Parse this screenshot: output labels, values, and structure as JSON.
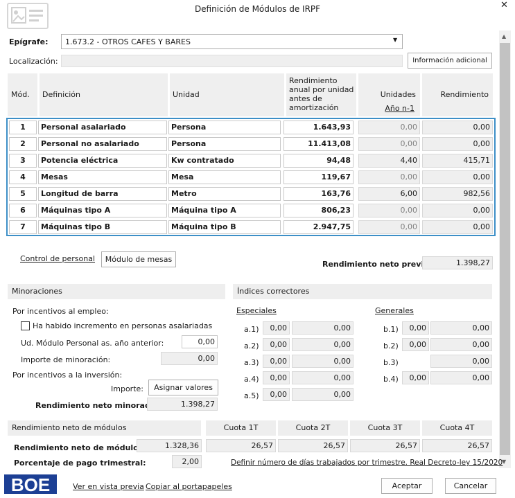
{
  "window": {
    "title": "Definición de Módulos de IRPF",
    "close": "✕"
  },
  "epigrafe": {
    "label": "Epígrafe:",
    "value": "1.673.2 - OTROS CAFES Y BARES"
  },
  "localizacion": {
    "label": "Localización:",
    "value": ""
  },
  "info_button": "Información adicional",
  "table": {
    "headers": {
      "mod": "Mód.",
      "definicion": "Definición",
      "unidad": "Unidad",
      "rendimiento_anual": "Rendimiento anual por unidad antes de amortización",
      "unidades": "Unidades",
      "anio": "Año n-1",
      "rendimiento": "Rendimiento"
    },
    "rows": [
      {
        "mod": "1",
        "def": "Personal asalariado",
        "unidad": "Persona",
        "rend": "1.643,93",
        "unid": "0,00",
        "total": "0,00"
      },
      {
        "mod": "2",
        "def": "Personal no asalariado",
        "unidad": "Persona",
        "rend": "11.413,08",
        "unid": "0,00",
        "total": "0,00"
      },
      {
        "mod": "3",
        "def": "Potencia eléctrica",
        "unidad": "Kw contratado",
        "rend": "94,48",
        "unid": "4,40",
        "total": "415,71"
      },
      {
        "mod": "4",
        "def": "Mesas",
        "unidad": "Mesa",
        "rend": "119,67",
        "unid": "0,00",
        "total": "0,00"
      },
      {
        "mod": "5",
        "def": "Longitud de barra",
        "unidad": "Metro",
        "rend": "163,76",
        "unid": "6,00",
        "total": "982,56"
      },
      {
        "mod": "6",
        "def": "Máquinas tipo A",
        "unidad": "Máquina tipo A",
        "rend": "806,23",
        "unid": "0,00",
        "total": "0,00"
      },
      {
        "mod": "7",
        "def": "Máquinas tipo B",
        "unidad": "Máquina tipo B",
        "rend": "2.947,75",
        "unid": "0,00",
        "total": "0,00"
      }
    ]
  },
  "control_personal": "Control de personal",
  "modulo_mesas": "Módulo de mesas",
  "rend_neto_previo": {
    "label": "Rendimiento neto previo:",
    "value": "1.398,27"
  },
  "minoraciones": {
    "title": "Minoraciones",
    "empleo": "Por incentivos al empleo:",
    "checkbox": "Ha habido incremento en personas asalariadas",
    "ud_modulo": {
      "label": "Ud. Módulo Personal as. año anterior:",
      "value": "0,00"
    },
    "importe_minoracion": {
      "label": "Importe de minoración:",
      "value": "0,00"
    },
    "inversion": "Por incentivos a la inversión:",
    "importe_label": "Importe:",
    "asignar": "Asignar valores",
    "rend_minorado": {
      "label": "Rendimiento neto minorado:",
      "value": "1.398,27"
    }
  },
  "indices": {
    "title": "Índices correctores",
    "especiales": "Especiales",
    "generales": "Generales",
    "a": [
      {
        "label": "a.1)",
        "v1": "0,00",
        "v2": "0,00"
      },
      {
        "label": "a.2)",
        "v1": "0,00",
        "v2": "0,00"
      },
      {
        "label": "a.3)",
        "v1": "0,00",
        "v2": "0,00"
      },
      {
        "label": "a.4)",
        "v1": "0,00",
        "v2": "0,00"
      },
      {
        "label": "a.5)",
        "v1": "0,00",
        "v2": "0,00"
      }
    ],
    "b": [
      {
        "label": "b.1)",
        "v1": "0,00",
        "v2": "0,00"
      },
      {
        "label": "b.2)",
        "v1": "0,00",
        "v2": "0,00"
      },
      {
        "label": "b.3)",
        "v1": "",
        "v2": "0,00"
      },
      {
        "label": "b.4)",
        "v1": "0,00",
        "v2": "0,00"
      }
    ]
  },
  "modulos": {
    "title": "Rendimiento neto de módulos",
    "cuotas": [
      "Cuota 1T",
      "Cuota 2T",
      "Cuota 3T",
      "Cuota 4T"
    ],
    "rend_label": "Rendimiento neto de módulos:",
    "rend_value": "1.328,36",
    "cuota_values": [
      "26,57",
      "26,57",
      "26,57",
      "26,57"
    ],
    "porcentaje_label": "Porcentaje de pago trimestral:",
    "porcentaje_value": "2,00",
    "definir_link": "Definir número de días trabajados por trimestre. Real Decreto-ley 15/2020"
  },
  "footer": {
    "logo": "BOE",
    "vista_previa": "Ver en vista previa",
    "copiar": "Copiar al portapapeles",
    "aceptar": "Aceptar",
    "cancelar": "Cancelar"
  }
}
